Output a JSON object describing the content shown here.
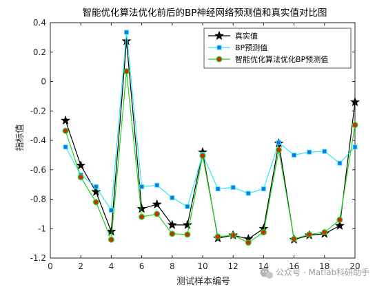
{
  "chart_data": {
    "type": "line",
    "title": "智能优化算法优化前后的BP神经网络预测值和真实值对比图",
    "xlabel": "测试样本编号",
    "ylabel": "指标值",
    "xlim": [
      0,
      20
    ],
    "ylim": [
      -1.2,
      0.4
    ],
    "xticks": [
      "0",
      "2",
      "4",
      "6",
      "8",
      "10",
      "12",
      "14",
      "16",
      "18",
      "20"
    ],
    "yticks": [
      "0.4",
      "0.2",
      "0",
      "-0.2",
      "-0.4",
      "-0.6",
      "-0.8",
      "-1",
      "-1.2"
    ],
    "legend_position": "top-right",
    "x": [
      1,
      2,
      3,
      4,
      5,
      6,
      7,
      8,
      9,
      10,
      11,
      12,
      13,
      14,
      15,
      16,
      17,
      18,
      19,
      20
    ],
    "series": [
      {
        "name": "真实值",
        "color": "#000000",
        "marker": "star",
        "values": [
          -0.265,
          -0.57,
          -0.75,
          -1.02,
          0.275,
          -0.865,
          -0.835,
          -0.975,
          -0.975,
          -0.48,
          -1.065,
          -1.045,
          -1.07,
          -1.0,
          -0.42,
          -1.075,
          -1.045,
          -1.035,
          -0.98,
          -0.14
        ]
      },
      {
        "name": "BP预测值",
        "color": "#33e6f2",
        "marker": "square",
        "marker_color": "#1473e6",
        "values": [
          -0.445,
          -0.635,
          -0.715,
          -0.875,
          0.335,
          -0.715,
          -0.705,
          -0.79,
          -0.85,
          -0.495,
          -0.73,
          -0.72,
          -0.76,
          -0.73,
          -0.415,
          -0.5,
          -0.48,
          -0.475,
          -0.555,
          -0.445
        ]
      },
      {
        "name": "智能优化算法优化BP预测值",
        "color": "#1ed21e",
        "marker": "circle",
        "marker_color": "#d12a0f",
        "values": [
          -0.335,
          -0.65,
          -0.82,
          -1.075,
          0.07,
          -0.92,
          -0.9,
          -1.035,
          -1.04,
          -0.505,
          -1.055,
          -1.045,
          -1.095,
          -1.025,
          -0.465,
          -1.07,
          -1.04,
          -1.025,
          -0.94,
          -0.295
        ]
      }
    ]
  },
  "watermark": {
    "text": "公众号 · Matlab科研助手",
    "icon": "wechat-logo-icon"
  }
}
